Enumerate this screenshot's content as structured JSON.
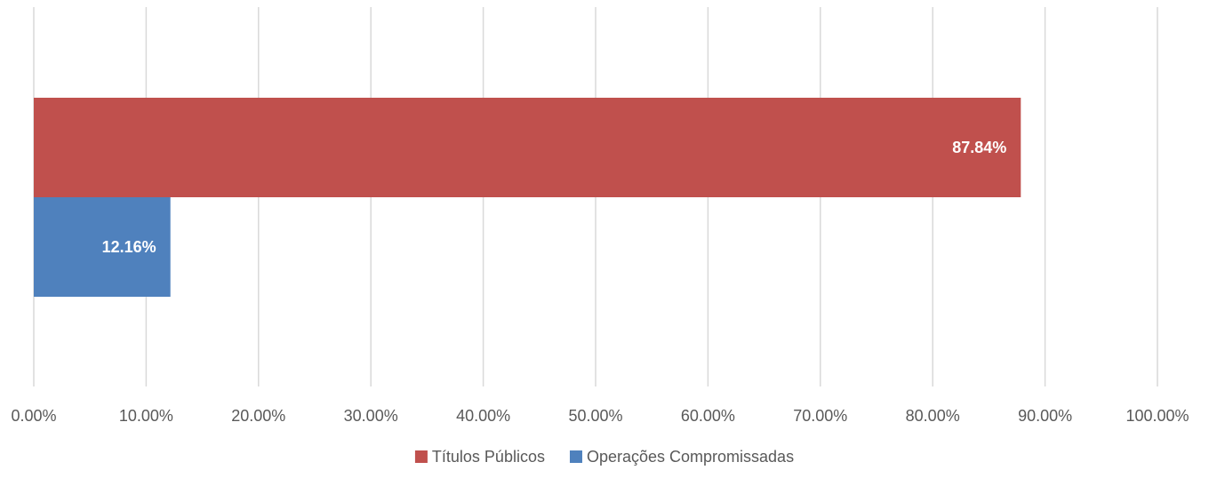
{
  "chart_data": {
    "type": "bar",
    "orientation": "horizontal",
    "title": "",
    "xlabel": "",
    "ylabel": "",
    "xlim": [
      0,
      100
    ],
    "grid": true,
    "legend_position": "bottom",
    "tick_labels": [
      "0.00%",
      "10.00%",
      "20.00%",
      "30.00%",
      "40.00%",
      "50.00%",
      "60.00%",
      "70.00%",
      "80.00%",
      "90.00%",
      "100.00%"
    ],
    "series": [
      {
        "name": "Títulos Públicos",
        "values": [
          87.84
        ],
        "value_label": "87.84%",
        "color": "#C0504D"
      },
      {
        "name": "Operações Compromissadas",
        "values": [
          12.16
        ],
        "value_label": "12.16%",
        "color": "#4F81BD"
      }
    ]
  }
}
